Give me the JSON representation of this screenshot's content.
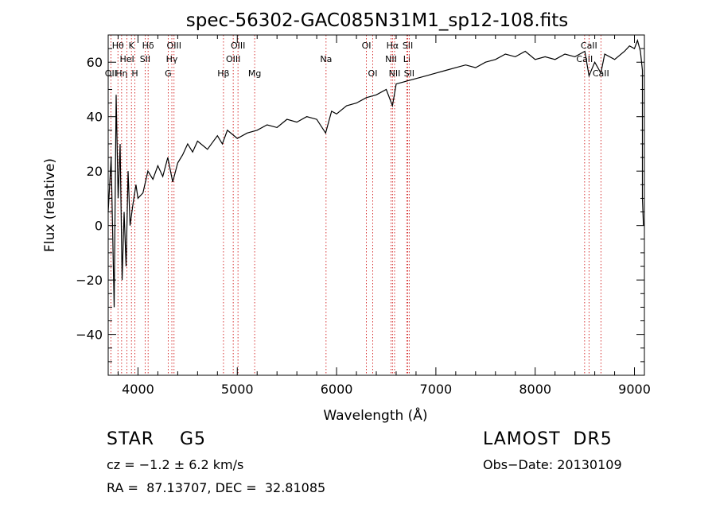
{
  "chart_data": {
    "type": "line",
    "title": "spec-56302-GAC085N31M1_sp12-108.fits",
    "xlabel": "Wavelength (Å)",
    "ylabel": "Flux (relative)",
    "xlim": [
      3700,
      9100
    ],
    "ylim": [
      -55,
      70
    ],
    "xticks": [
      {
        "v": 4000,
        "label": "4000"
      },
      {
        "v": 5000,
        "label": "5000"
      },
      {
        "v": 6000,
        "label": "6000"
      },
      {
        "v": 7000,
        "label": "7000"
      },
      {
        "v": 8000,
        "label": "8000"
      },
      {
        "v": 9000,
        "label": "9000"
      }
    ],
    "yticks": [
      {
        "v": -40,
        "label": "−40"
      },
      {
        "v": -20,
        "label": "−20"
      },
      {
        "v": 0,
        "label": "0"
      },
      {
        "v": 20,
        "label": "20"
      },
      {
        "v": 40,
        "label": "40"
      },
      {
        "v": 60,
        "label": "60"
      }
    ],
    "grid": false,
    "spectrum": {
      "x": [
        3700,
        3730,
        3760,
        3780,
        3800,
        3820,
        3840,
        3860,
        3880,
        3900,
        3920,
        3950,
        3980,
        4000,
        4050,
        4100,
        4150,
        4200,
        4250,
        4300,
        4350,
        4400,
        4450,
        4500,
        4550,
        4600,
        4700,
        4800,
        4850,
        4900,
        5000,
        5100,
        5200,
        5300,
        5400,
        5500,
        5600,
        5700,
        5800,
        5890,
        5950,
        6000,
        6100,
        6200,
        6300,
        6400,
        6500,
        6563,
        6600,
        6700,
        6800,
        6900,
        7000,
        7100,
        7200,
        7300,
        7400,
        7500,
        7600,
        7700,
        7800,
        7900,
        8000,
        8100,
        8200,
        8300,
        8400,
        8500,
        8542,
        8600,
        8662,
        8700,
        8800,
        8900,
        8950,
        9000,
        9030,
        9060,
        9080,
        9080,
        9090
      ],
      "y": [
        5,
        25,
        -30,
        48,
        10,
        30,
        -20,
        5,
        -15,
        20,
        0,
        8,
        15,
        10,
        12,
        20,
        17,
        22,
        18,
        25,
        16,
        23,
        26,
        30,
        27,
        31,
        28,
        33,
        30,
        35,
        32,
        34,
        35,
        37,
        36,
        39,
        38,
        40,
        39,
        34,
        42,
        41,
        44,
        45,
        47,
        48,
        50,
        44,
        52,
        53,
        54,
        55,
        56,
        57,
        58,
        59,
        58,
        60,
        61,
        63,
        62,
        64,
        61,
        62,
        61,
        63,
        62,
        64,
        55,
        60,
        56,
        63,
        61,
        64,
        66,
        65,
        68,
        64,
        57,
        10,
        0
      ]
    },
    "lines": [
      {
        "w": 3727,
        "label": "OII",
        "row": 2
      },
      {
        "w": 3798,
        "label": "Hθ",
        "row": 0
      },
      {
        "w": 3835,
        "label": "Hη",
        "row": 2
      },
      {
        "w": 3889,
        "label": "HeI",
        "row": 1
      },
      {
        "w": 3934,
        "label": "K",
        "row": 0
      },
      {
        "w": 3969,
        "label": "H",
        "row": 2
      },
      {
        "w": 4072,
        "label": "SII",
        "row": 1
      },
      {
        "w": 4102,
        "label": "Hδ",
        "row": 0
      },
      {
        "w": 4304,
        "label": "G",
        "row": 2
      },
      {
        "w": 4341,
        "label": "Hγ",
        "row": 1
      },
      {
        "w": 4363,
        "label": "OIII",
        "row": 0
      },
      {
        "w": 4861,
        "label": "Hβ",
        "row": 2
      },
      {
        "w": 4959,
        "label": "OIII",
        "row": 1
      },
      {
        "w": 5007,
        "label": "OIII",
        "row": 0
      },
      {
        "w": 5175,
        "label": "Mg",
        "row": 2
      },
      {
        "w": 5894,
        "label": "Na",
        "row": 1
      },
      {
        "w": 6300,
        "label": "OI",
        "row": 0
      },
      {
        "w": 6364,
        "label": "OI",
        "row": 2
      },
      {
        "w": 6548,
        "label": "NII",
        "row": 1
      },
      {
        "w": 6563,
        "label": "Hα",
        "row": 0
      },
      {
        "w": 6584,
        "label": "NII",
        "row": 2
      },
      {
        "w": 6707,
        "label": "Li",
        "row": 1
      },
      {
        "w": 6717,
        "label": "SII",
        "row": 0
      },
      {
        "w": 6731,
        "label": "SII",
        "row": 2
      },
      {
        "w": 8498,
        "label": "CaII",
        "row": 1
      },
      {
        "w": 8542,
        "label": "CaII",
        "row": 0
      },
      {
        "w": 8662,
        "label": "CaII",
        "row": 2
      }
    ]
  },
  "info": {
    "class_line": "STAR    G5",
    "release": "LAMOST  DR5",
    "cz": "cz = −1.2 ± 6.2 km/s",
    "obs_date": "Obs−Date: 20130109",
    "coords": "RA =  87.13707, DEC =  32.81085"
  },
  "colors": {
    "spectrum": "#000000",
    "lines": "#cc0000",
    "axes": "#000000",
    "background": "#ffffff"
  }
}
